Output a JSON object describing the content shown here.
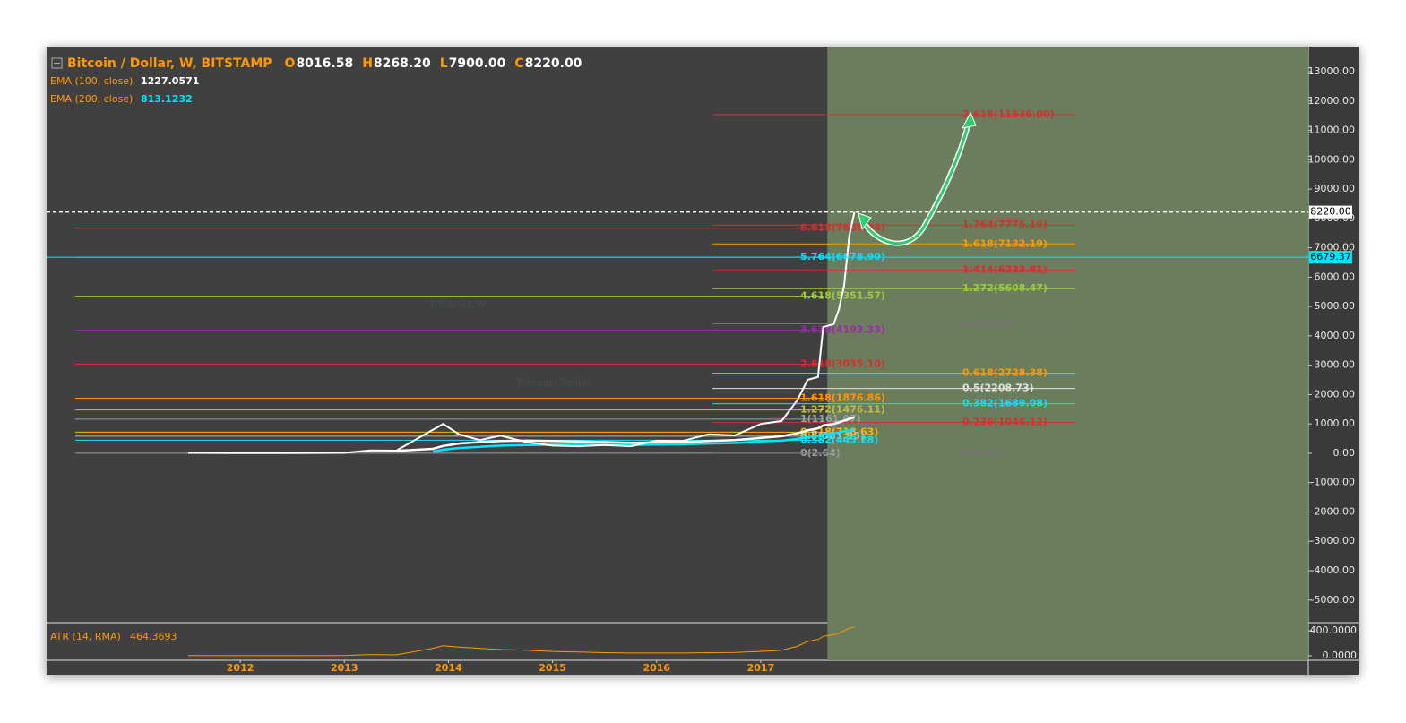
{
  "header": {
    "title": "Bitcoin / Dollar, W, BITSTAMP",
    "ohlc": [
      {
        "key": "O",
        "value": "8016.58"
      },
      {
        "key": "H",
        "value": "8268.20"
      },
      {
        "key": "L",
        "value": "7900.00"
      },
      {
        "key": "C",
        "value": "8220.00"
      }
    ]
  },
  "watermark": {
    "symbol": "BTCUSD, W",
    "name": "Bitcoin / Dollar"
  },
  "chart_data": {
    "type": "line",
    "x": [
      2011.5,
      2012,
      2012.5,
      2013,
      2013.25,
      2013.5,
      2013.85,
      2013.95,
      2014.1,
      2014.3,
      2014.5,
      2014.75,
      2015,
      2015.25,
      2015.5,
      2015.75,
      2016,
      2016.25,
      2016.5,
      2016.75,
      2017,
      2017.2,
      2017.35,
      2017.45,
      2017.55,
      2017.6,
      2017.7,
      2017.75,
      2017.8,
      2017.85,
      2017.9
    ],
    "series": [
      {
        "name": "BTCUSD",
        "color": "#ffffff",
        "values": [
          15,
          5,
          7,
          13,
          100,
          90,
          800,
          1000,
          650,
          450,
          600,
          380,
          260,
          240,
          280,
          240,
          430,
          420,
          650,
          610,
          1000,
          1100,
          1800,
          2500,
          2600,
          4300,
          4400,
          4900,
          5700,
          7400,
          8220
        ]
      },
      {
        "name": "EMA (100, close)",
        "color": "#ffffff",
        "last_label": "1227.0571",
        "values": [
          null,
          null,
          null,
          null,
          null,
          80,
          150,
          250,
          330,
          380,
          420,
          430,
          420,
          400,
          380,
          360,
          370,
          380,
          420,
          450,
          520,
          580,
          680,
          780,
          850,
          950,
          1000,
          1050,
          1110,
          1170,
          1227
        ]
      },
      {
        "name": "EMA (200, close)",
        "color": "#00e5ff",
        "last_label": "813.1232",
        "values": [
          null,
          null,
          null,
          null,
          null,
          null,
          60,
          120,
          180,
          220,
          260,
          280,
          290,
          290,
          290,
          285,
          295,
          305,
          330,
          350,
          400,
          430,
          490,
          550,
          590,
          640,
          680,
          710,
          750,
          780,
          813
        ]
      }
    ],
    "xlim": [
      2010.14,
      2022.26
    ],
    "xticks": [
      2012,
      2013,
      2014,
      2015,
      2016,
      2017
    ],
    "ylim": [
      -5770,
      13855
    ],
    "yticks": [
      {
        "value": 13000,
        "label": "13000.00"
      },
      {
        "value": 12000,
        "label": "12000.00"
      },
      {
        "value": 11000,
        "label": "11000.00"
      },
      {
        "value": 10000,
        "label": "10000.00"
      },
      {
        "value": 9000,
        "label": "9000.00"
      },
      {
        "value": 8000,
        "label": "8000.00"
      },
      {
        "value": 7000,
        "label": "7000.00"
      },
      {
        "value": 6000,
        "label": "6000.00"
      },
      {
        "value": 5000,
        "label": "5000.00"
      },
      {
        "value": 4000,
        "label": "4000.00"
      },
      {
        "value": 3000,
        "label": "3000.00"
      },
      {
        "value": 2000,
        "label": "2000.00"
      },
      {
        "value": 1000,
        "label": "1000.00"
      },
      {
        "value": 0,
        "label": "0.00"
      },
      {
        "value": -1000,
        "label": "-1000.00"
      },
      {
        "value": -2000,
        "label": "-2000.00"
      },
      {
        "value": -3000,
        "label": "-3000.00"
      },
      {
        "value": -4000,
        "label": "-4000.00"
      },
      {
        "value": -5000,
        "label": "-5000.00"
      }
    ],
    "shaded_from": 2017.64,
    "price_lines": [
      {
        "value": 8220,
        "label": "8220.00",
        "color": "#ffffff",
        "dashed": true
      },
      {
        "value": 6679.37,
        "label": "6679.37",
        "color": "#00e5ff",
        "dashed": false
      }
    ],
    "fib_left": [
      {
        "value": 7668.04,
        "label": "6.618(7668.04)",
        "color": "#d32f2f"
      },
      {
        "value": 6678.9,
        "label": "5.764(6678.90)",
        "color": "#00e5ff"
      },
      {
        "value": 5351.57,
        "label": "4.618(5351.57)",
        "color": "#9ccc3c"
      },
      {
        "value": 4193.33,
        "label": "3.618(4193.33)",
        "color": "#9c27b0"
      },
      {
        "value": 3035.1,
        "label": "2.618(3035.10)",
        "color": "#d32f2f"
      },
      {
        "value": 1876.86,
        "label": "1.618(1876.86)",
        "color": "#ff9800"
      },
      {
        "value": 1476.11,
        "label": "1.272(1476.11)",
        "color": "#c0c040"
      },
      {
        "value": 1161.07,
        "label": "1(1161.07)",
        "color": "#9e9e9e"
      },
      {
        "value": 718.63,
        "label": "0.618(718.63)",
        "color": "#ffb300"
      },
      {
        "value": 581.95,
        "label": "0.5(581.95)",
        "color": "#bdbdbd"
      },
      {
        "value": 445.28,
        "label": "0.382(445.28)",
        "color": "#00e5ff"
      },
      {
        "value": 2.64,
        "label": "0(2.64)",
        "color": "#9e9e9e"
      }
    ],
    "fib_right": [
      {
        "value": 11536.0,
        "label": "2.618(11536.00)",
        "color": "#d32f2f"
      },
      {
        "value": 7775.15,
        "label": "1.764(7775.15)",
        "color": "#d32f2f"
      },
      {
        "value": 7132.19,
        "label": "1.618(7132.19)",
        "color": "#ff9800"
      },
      {
        "value": 6233.81,
        "label": "1.414(6233.81)",
        "color": "#d32f2f"
      },
      {
        "value": 5608.47,
        "label": "1.272(5608.47)",
        "color": "#9ccc3c"
      },
      {
        "value": 4410.63,
        "label": "1(4410.63)",
        "color": "#757575"
      },
      {
        "value": 2728.38,
        "label": "0.618(2728.38)",
        "color": "#ff9800"
      },
      {
        "value": 2208.73,
        "label": "0.5(2208.73)",
        "color": "#e0e0e0"
      },
      {
        "value": 1689.08,
        "label": "0.382(1689.08)",
        "color": "#00e5ff"
      },
      {
        "value": 1046.12,
        "label": "0.236(1046.12)",
        "color": "#d32f2f"
      },
      {
        "value": 6.82,
        "label": "0(6.82)",
        "color": "#757575"
      }
    ],
    "atr": {
      "name": "ATR (14, RMA)",
      "last_label": "464.3693",
      "color": "#ff9800",
      "values": [
        3,
        2,
        2,
        5,
        20,
        15,
        120,
        160,
        140,
        120,
        100,
        90,
        70,
        60,
        50,
        45,
        45,
        45,
        50,
        55,
        70,
        90,
        150,
        230,
        260,
        310,
        340,
        360,
        400,
        440,
        464
      ],
      "ylim": [
        -71,
        529
      ],
      "yticks": [
        {
          "value": 400,
          "label": "400.0000"
        },
        {
          "value": 0,
          "label": "0.0000"
        }
      ]
    }
  }
}
